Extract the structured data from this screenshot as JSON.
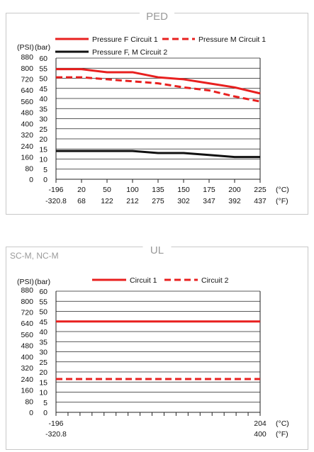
{
  "chart_data": [
    {
      "type": "line",
      "title": "PED",
      "x_celsius": [
        "-196",
        "20",
        "50",
        "100",
        "135",
        "150",
        "175",
        "200",
        "225"
      ],
      "x_fahrenheit": [
        "-320.8",
        "68",
        "122",
        "212",
        "275",
        "302",
        "347",
        "392",
        "437"
      ],
      "x_unit_c": "(°C)",
      "x_unit_f": "(°F)",
      "y_unit_psi": "(PSI)",
      "y_unit_bar": "(bar)",
      "ylim_bar": [
        0,
        60
      ],
      "y_ticks_bar": [
        "0",
        "5",
        "10",
        "15",
        "20",
        "25",
        "30",
        "35",
        "40",
        "45",
        "50",
        "55",
        "60"
      ],
      "y_ticks_psi": [
        "0",
        "80",
        "160",
        "240",
        "320",
        "400",
        "480",
        "560",
        "640",
        "720",
        "800",
        "880"
      ],
      "series": [
        {
          "name": "Pressure F Circuit 1",
          "color": "#e8201f",
          "dash": "solid",
          "values": [
            54.5,
            54.5,
            53,
            53,
            50.5,
            49.5,
            47.5,
            45.5,
            42.5
          ]
        },
        {
          "name": "Pressure M Circuit 1",
          "color": "#e8201f",
          "dash": "dashed",
          "values": [
            50.5,
            50.5,
            49.5,
            48.5,
            47.5,
            45.5,
            44,
            41,
            38.5
          ]
        },
        {
          "name": "Pressure F, M Circuit 2",
          "color": "#111111",
          "dash": "solid",
          "values": [
            14,
            14,
            14,
            14,
            13,
            13,
            12,
            11,
            11
          ]
        }
      ]
    },
    {
      "type": "line",
      "title": "UL",
      "note": "SC-M, NC-M",
      "x_celsius": [
        "-196",
        "204"
      ],
      "x_fahrenheit": [
        "-320.8",
        "400"
      ],
      "x_unit_c": "(°C)",
      "x_unit_f": "(°F)",
      "y_unit_psi": "(PSI)",
      "y_unit_bar": "(bar)",
      "ylim_bar": [
        0,
        60
      ],
      "y_ticks_bar": [
        "0",
        "5",
        "10",
        "15",
        "20",
        "25",
        "30",
        "35",
        "40",
        "45",
        "50",
        "55",
        "60"
      ],
      "y_ticks_psi": [
        "0",
        "80",
        "160",
        "240",
        "320",
        "400",
        "480",
        "560",
        "640",
        "720",
        "800",
        "880"
      ],
      "series": [
        {
          "name": "Circuit 1",
          "color": "#e8201f",
          "dash": "solid",
          "values": [
            45,
            45
          ]
        },
        {
          "name": "Circuit 2",
          "color": "#e8201f",
          "dash": "dashed",
          "values": [
            16.5,
            16.5
          ]
        }
      ]
    }
  ]
}
